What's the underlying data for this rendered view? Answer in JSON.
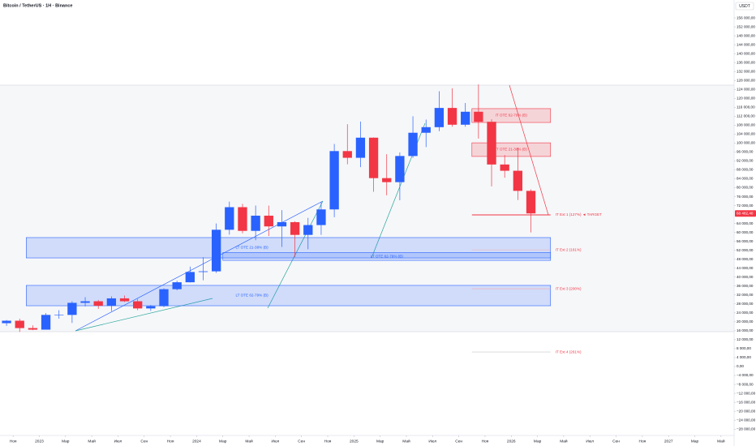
{
  "header": {
    "title": "Bitcoin / TetherUS · 1H · Binance",
    "currency": "USDT"
  },
  "chart_data": {
    "type": "candlestick",
    "up_color": "#2962ff",
    "down_color": "#f23645",
    "x": [
      "2022-10",
      "2022-11",
      "2022-12",
      "2023-01",
      "2023-02",
      "2023-03",
      "2023-04",
      "2023-05",
      "2023-06",
      "2023-07",
      "2023-08",
      "2023-09",
      "2023-10",
      "2023-11",
      "2023-12",
      "2024-01",
      "2024-02",
      "2024-03",
      "2024-04",
      "2024-05",
      "2024-06",
      "2024-07",
      "2024-08",
      "2024-09",
      "2024-10",
      "2024-11",
      "2024-12",
      "2025-01",
      "2025-02",
      "2025-03",
      "2025-04",
      "2025-05",
      "2025-06",
      "2025-07",
      "2025-08",
      "2025-09",
      "2025-10",
      "2025-11",
      "2025-12",
      "2026-01",
      "2026-02"
    ],
    "open": [
      19400,
      20500,
      17200,
      16500,
      23100,
      23100,
      28500,
      29200,
      27200,
      30500,
      29200,
      26000,
      27000,
      34600,
      37700,
      42300,
      42600,
      61200,
      71300,
      60700,
      67500,
      62700,
      64600,
      58900,
      63300,
      70300,
      96400,
      93400,
      102400,
      84300,
      82500,
      94200,
      104600,
      107100,
      115700,
      108200,
      114000,
      109500,
      90400,
      87600,
      78600
    ],
    "high": [
      20800,
      21400,
      18400,
      23900,
      25200,
      29200,
      31000,
      29800,
      31400,
      31800,
      30200,
      27500,
      35000,
      38400,
      44700,
      48900,
      64000,
      73800,
      72800,
      72000,
      72000,
      70000,
      65000,
      66500,
      73600,
      99600,
      108400,
      109600,
      102500,
      95000,
      95800,
      112000,
      110500,
      123200,
      124500,
      117900,
      126200,
      110600,
      94600,
      97900,
      79300
    ],
    "low": [
      18200,
      15500,
      16300,
      16500,
      21400,
      19500,
      26900,
      25800,
      24800,
      28900,
      25200,
      24900,
      26600,
      34100,
      37600,
      38600,
      41900,
      59000,
      59600,
      56500,
      58400,
      53500,
      49000,
      52500,
      58900,
      66800,
      90500,
      89200,
      78200,
      76600,
      74400,
      93400,
      98200,
      105300,
      107300,
      107300,
      102000,
      80600,
      84500,
      74500,
      60000
    ],
    "close": [
      20500,
      17200,
      16500,
      23100,
      23100,
      28500,
      29200,
      27200,
      30500,
      29200,
      26000,
      27000,
      34600,
      37700,
      42300,
      42600,
      61200,
      71300,
      60700,
      67500,
      62700,
      64600,
      58900,
      63300,
      70300,
      96400,
      93400,
      102400,
      84300,
      82500,
      94200,
      104600,
      107100,
      115700,
      108200,
      114000,
      109500,
      90400,
      87600,
      78600,
      68500
    ],
    "xlim": [
      "2022-10",
      "2027-06"
    ],
    "xticks": [
      {
        "value": "2022-11",
        "label": "Ноя"
      },
      {
        "value": "2023-01",
        "label": "2023"
      },
      {
        "value": "2023-03",
        "label": "Мар"
      },
      {
        "value": "2023-05",
        "label": "Май"
      },
      {
        "value": "2023-07",
        "label": "Июл"
      },
      {
        "value": "2023-09",
        "label": "Сен"
      },
      {
        "value": "2023-11",
        "label": "Ноя"
      },
      {
        "value": "2024-01",
        "label": "2024"
      },
      {
        "value": "2024-03",
        "label": "Мар"
      },
      {
        "value": "2024-05",
        "label": "Май"
      },
      {
        "value": "2024-07",
        "label": "Июл"
      },
      {
        "value": "2024-09",
        "label": "Сен"
      },
      {
        "value": "2024-11",
        "label": "Ноя"
      },
      {
        "value": "2025-01",
        "label": "2025"
      },
      {
        "value": "2025-03",
        "label": "Мар"
      },
      {
        "value": "2025-05",
        "label": "Май"
      },
      {
        "value": "2025-07",
        "label": "Июл"
      },
      {
        "value": "2025-09",
        "label": "Сен"
      },
      {
        "value": "2025-11",
        "label": "Ноя"
      },
      {
        "value": "2026-01",
        "label": "2026"
      },
      {
        "value": "2026-03",
        "label": "Мар"
      },
      {
        "value": "2026-05",
        "label": "Май"
      },
      {
        "value": "2026-07",
        "label": "Июл"
      },
      {
        "value": "2026-09",
        "label": "Сен"
      },
      {
        "value": "2026-11",
        "label": "Ноя"
      },
      {
        "value": "2027-01",
        "label": "2027"
      },
      {
        "value": "2027-03",
        "label": "Мар"
      },
      {
        "value": "2027-05",
        "label": "Май"
      }
    ],
    "ylim": [
      -30840,
      164000
    ],
    "yticks": [
      {
        "value": 156000,
        "label": "156 000,00"
      },
      {
        "value": 152000,
        "label": "152 000,00"
      },
      {
        "value": 148000,
        "label": "148 000,00"
      },
      {
        "value": 144000,
        "label": "144 000,00"
      },
      {
        "value": 140000,
        "label": "140 000,00"
      },
      {
        "value": 136000,
        "label": "136 000,00"
      },
      {
        "value": 132000,
        "label": "132 000,00"
      },
      {
        "value": 128000,
        "label": "128 000,00"
      },
      {
        "value": 124000,
        "label": "124 000,00"
      },
      {
        "value": 120000,
        "label": "120 000,00"
      },
      {
        "value": 116000,
        "label": "116 000,00"
      },
      {
        "value": 112000,
        "label": "112 000,00"
      },
      {
        "value": 108000,
        "label": "108 000,00"
      },
      {
        "value": 104000,
        "label": "104 000,00"
      },
      {
        "value": 100000,
        "label": "100 000,00"
      },
      {
        "value": 96000,
        "label": "96 000,00"
      },
      {
        "value": 92000,
        "label": "92 000,00"
      },
      {
        "value": 88000,
        "label": "88 000,00"
      },
      {
        "value": 84000,
        "label": "84 000,00"
      },
      {
        "value": 80000,
        "label": "80 000,00"
      },
      {
        "value": 76000,
        "label": "76 000,00"
      },
      {
        "value": 72000,
        "label": "72 000,00"
      },
      {
        "value": 64000,
        "label": "64 000,00"
      },
      {
        "value": 60000,
        "label": "60 000,00"
      },
      {
        "value": 56000,
        "label": "56 000,00"
      },
      {
        "value": 52000,
        "label": "52 000,00"
      },
      {
        "value": 48000,
        "label": "48 000,00"
      },
      {
        "value": 44000,
        "label": "44 000,00"
      },
      {
        "value": 40000,
        "label": "40 000,00"
      },
      {
        "value": 36000,
        "label": "36 000,00"
      },
      {
        "value": 32000,
        "label": "32 000,00"
      },
      {
        "value": 28000,
        "label": "28 000,00"
      },
      {
        "value": 24000,
        "label": "24 000,00"
      },
      {
        "value": 20000,
        "label": "20 000,00"
      },
      {
        "value": 16000,
        "label": "16 000,00"
      },
      {
        "value": 12000,
        "label": "12 000,00"
      },
      {
        "value": 8000,
        "label": "8 000,00"
      },
      {
        "value": 4000,
        "label": "4 000,00"
      },
      {
        "value": 0,
        "label": "0,00"
      },
      {
        "value": -4000,
        "label": "−4 000,00"
      },
      {
        "value": -8000,
        "label": "−8 000,00"
      },
      {
        "value": -12000,
        "label": "−12 000,00"
      },
      {
        "value": -16000,
        "label": "−16 000,00"
      },
      {
        "value": -20000,
        "label": "−20 000,00"
      },
      {
        "value": -24000,
        "label": "−24 000,00"
      },
      {
        "value": -28000,
        "label": "−28 000,00"
      }
    ],
    "last_price": {
      "value": 68482.4,
      "label": "68 482,40"
    },
    "zones": [
      {
        "label": "LT OTE 21-38% (B)",
        "from": "2022-12",
        "to": "2026-04",
        "top": 57700,
        "bottom": 48600,
        "color": "#2962ff"
      },
      {
        "label": "LT OTE 62-79% (B)",
        "from": "2024-03",
        "to": "2026-04",
        "top": 51000,
        "bottom": 47500,
        "color": "#2962ff"
      },
      {
        "label": "LT OTE 62-79% (B)",
        "from": "2022-12",
        "to": "2026-04",
        "top": 36300,
        "bottom": 27200,
        "color": "#2962ff"
      },
      {
        "label": "IT OTE 62-79% (B)",
        "from": "2025-10",
        "to": "2026-04",
        "top": 115400,
        "bottom": 109200,
        "color": "#f23645"
      },
      {
        "label": "IT OTE 21-38% (B)",
        "from": "2025-10",
        "to": "2026-04",
        "top": 100100,
        "bottom": 94000,
        "color": "#f23645"
      }
    ],
    "levels": [
      {
        "label": "IT Ext 1 (127%) ◄ TARGET",
        "from": "2025-10",
        "to": "2026-04",
        "price": 67850,
        "color": "#f23645"
      },
      {
        "label": "IT Ext 2 (161%)",
        "from": "2025-10",
        "to": "2026-04",
        "price": 52200,
        "color": "#f7a6ae"
      },
      {
        "label": "IT Ext 3 (200%)",
        "from": "2025-10",
        "to": "2026-04",
        "price": 34800,
        "color": "#f7a6ae"
      },
      {
        "label": "IT Ext 4 (261%)",
        "from": "2025-10",
        "to": "2026-04",
        "price": 6500,
        "color": "#c8c8c8"
      }
    ]
  }
}
